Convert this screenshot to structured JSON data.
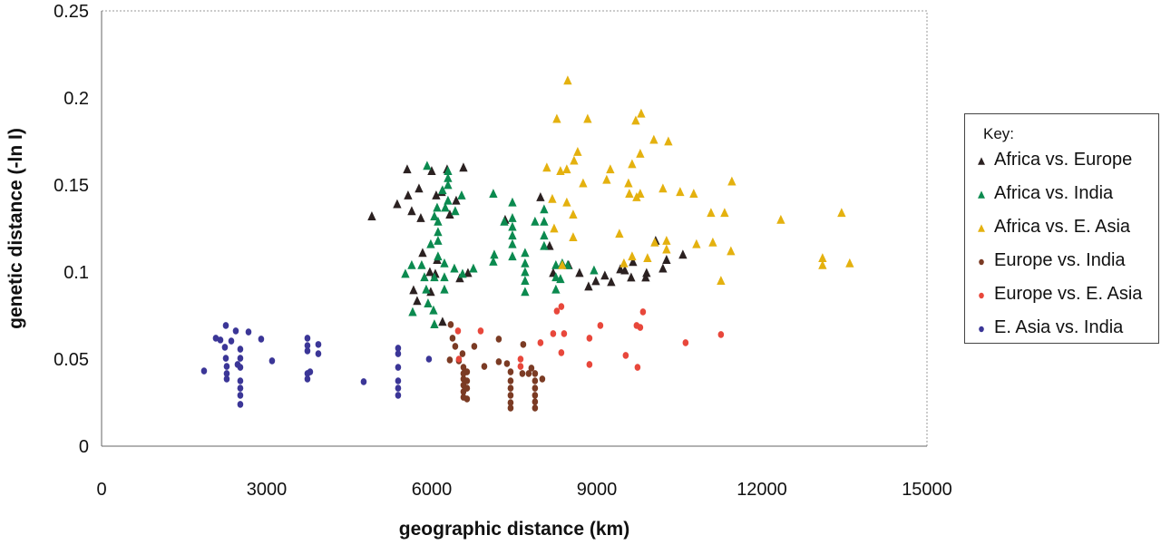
{
  "chart_data": {
    "type": "scatter",
    "title": "",
    "xlabel": "geographic distance (km)",
    "ylabel": "genetic distance (-ln I)",
    "xlim": [
      0,
      15000
    ],
    "ylim": [
      0,
      0.25
    ],
    "xticks": [
      "0",
      "3000",
      "6000",
      "9000",
      "12000",
      "15000"
    ],
    "yticks": [
      "0",
      "0.05",
      "0.1",
      "0.15",
      "0.2",
      "0.25"
    ],
    "xtick_values": [
      0,
      3000,
      6000,
      9000,
      12000,
      15000
    ],
    "ytick_values": [
      0,
      0.05,
      0.1,
      0.15,
      0.2,
      0.25
    ],
    "grid": false,
    "legend_title": "Key:",
    "legend_position": "right",
    "series": [
      {
        "name": "Africa vs. Europe",
        "marker": "triangle",
        "color": "#2b2121",
        "points": [
          [
            4911,
            0.132
          ],
          [
            5372,
            0.139
          ],
          [
            5570,
            0.144
          ],
          [
            5554,
            0.159
          ],
          [
            5636,
            0.135
          ],
          [
            5801,
            0.131
          ],
          [
            5768,
            0.148
          ],
          [
            5999,
            0.158
          ],
          [
            6081,
            0.144
          ],
          [
            6180,
            0.146
          ],
          [
            6279,
            0.159
          ],
          [
            6328,
            0.133
          ],
          [
            6444,
            0.141
          ],
          [
            6576,
            0.16
          ],
          [
            5834,
            0.111
          ],
          [
            6098,
            0.107
          ],
          [
            5966,
            0.1
          ],
          [
            5982,
            0.0886
          ],
          [
            5669,
            0.0896
          ],
          [
            5735,
            0.0834
          ],
          [
            6065,
            0.099
          ],
          [
            6196,
            0.0714
          ],
          [
            6510,
            0.0964
          ],
          [
            6658,
            0.0995
          ],
          [
            7334,
            0.13
          ],
          [
            7976,
            0.143
          ],
          [
            8141,
            0.115
          ],
          [
            8207,
            0.0995
          ],
          [
            8487,
            0.104
          ],
          [
            8685,
            0.0995
          ],
          [
            8850,
            0.0917
          ],
          [
            8982,
            0.0948
          ],
          [
            9146,
            0.098
          ],
          [
            9262,
            0.0943
          ],
          [
            9427,
            0.1016
          ],
          [
            9509,
            0.101
          ],
          [
            9624,
            0.0969
          ],
          [
            9657,
            0.1058
          ],
          [
            9904,
            0.0995
          ],
          [
            10069,
            0.118
          ],
          [
            10201,
            0.102
          ],
          [
            10564,
            0.11
          ],
          [
            9888,
            0.0969
          ],
          [
            10267,
            0.107
          ]
        ]
      },
      {
        "name": "Africa vs. India",
        "marker": "triangle",
        "color": "#0b8a4f",
        "points": [
          [
            5916,
            0.161
          ],
          [
            6295,
            0.158
          ],
          [
            6295,
            0.154
          ],
          [
            6196,
            0.147
          ],
          [
            6295,
            0.15
          ],
          [
            6295,
            0.141
          ],
          [
            6246,
            0.137
          ],
          [
            6543,
            0.144
          ],
          [
            6427,
            0.135
          ],
          [
            7119,
            0.145
          ],
          [
            7466,
            0.14
          ],
          [
            7466,
            0.131
          ],
          [
            7466,
            0.126
          ],
          [
            7466,
            0.121
          ],
          [
            7466,
            0.116
          ],
          [
            7466,
            0.109
          ],
          [
            7318,
            0.129
          ],
          [
            8042,
            0.136
          ],
          [
            8042,
            0.129
          ],
          [
            8042,
            0.121
          ],
          [
            8042,
            0.115
          ],
          [
            7877,
            0.129
          ],
          [
            6114,
            0.129
          ],
          [
            6114,
            0.123
          ],
          [
            6114,
            0.118
          ],
          [
            6114,
            0.109
          ],
          [
            6048,
            0.132
          ],
          [
            6098,
            0.137
          ],
          [
            5636,
            0.104
          ],
          [
            5521,
            0.099
          ],
          [
            5817,
            0.104
          ],
          [
            5867,
            0.097
          ],
          [
            5900,
            0.09
          ],
          [
            5933,
            0.082
          ],
          [
            6032,
            0.078
          ],
          [
            6048,
            0.07
          ],
          [
            5653,
            0.077
          ],
          [
            6230,
            0.105
          ],
          [
            6230,
            0.097
          ],
          [
            6230,
            0.09
          ],
          [
            6560,
            0.099
          ],
          [
            6411,
            0.102
          ],
          [
            6757,
            0.102
          ],
          [
            7136,
            0.11
          ],
          [
            7119,
            0.106
          ],
          [
            7696,
            0.111
          ],
          [
            7696,
            0.105
          ],
          [
            7696,
            0.1
          ],
          [
            7696,
            0.095
          ],
          [
            7696,
            0.0886
          ],
          [
            8256,
            0.104
          ],
          [
            8256,
            0.097
          ],
          [
            8256,
            0.09
          ],
          [
            8339,
            0.096
          ],
          [
            8372,
            0.105
          ],
          [
            8471,
            0.104
          ],
          [
            8949,
            0.101
          ],
          [
            5982,
            0.116
          ],
          [
            6048,
            0.097
          ]
        ]
      },
      {
        "name": "Africa vs. E. Asia",
        "marker": "triangle",
        "color": "#e4b10f",
        "points": [
          [
            8471,
            0.21
          ],
          [
            8273,
            0.188
          ],
          [
            8833,
            0.188
          ],
          [
            9806,
            0.191
          ],
          [
            9707,
            0.187
          ],
          [
            10036,
            0.176
          ],
          [
            10300,
            0.175
          ],
          [
            8652,
            0.169
          ],
          [
            8586,
            0.164
          ],
          [
            9789,
            0.168
          ],
          [
            9641,
            0.162
          ],
          [
            8091,
            0.16
          ],
          [
            8339,
            0.158
          ],
          [
            8454,
            0.159
          ],
          [
            9245,
            0.159
          ],
          [
            8751,
            0.151
          ],
          [
            9179,
            0.153
          ],
          [
            9575,
            0.151
          ],
          [
            9591,
            0.145
          ],
          [
            9723,
            0.143
          ],
          [
            9789,
            0.145
          ],
          [
            10201,
            0.148
          ],
          [
            10514,
            0.146
          ],
          [
            10761,
            0.145
          ],
          [
            11454,
            0.152
          ],
          [
            8191,
            0.142
          ],
          [
            8454,
            0.14
          ],
          [
            8570,
            0.133
          ],
          [
            11075,
            0.134
          ],
          [
            11322,
            0.134
          ],
          [
            12344,
            0.13
          ],
          [
            13448,
            0.134
          ],
          [
            8224,
            0.125
          ],
          [
            8570,
            0.12
          ],
          [
            9410,
            0.122
          ],
          [
            10267,
            0.118
          ],
          [
            10267,
            0.113
          ],
          [
            10053,
            0.117
          ],
          [
            10811,
            0.116
          ],
          [
            11108,
            0.117
          ],
          [
            11437,
            0.112
          ],
          [
            9641,
            0.109
          ],
          [
            9921,
            0.108
          ],
          [
            9493,
            0.105
          ],
          [
            8372,
            0.104
          ],
          [
            11256,
            0.095
          ],
          [
            13102,
            0.108
          ],
          [
            13102,
            0.104
          ],
          [
            13596,
            0.105
          ]
        ]
      },
      {
        "name": "Europe vs. India",
        "marker": "circle",
        "color": "#7b3b24",
        "points": [
          [
            6345,
            0.0698
          ],
          [
            6378,
            0.062
          ],
          [
            6427,
            0.0573
          ],
          [
            6559,
            0.0531
          ],
          [
            6328,
            0.0495
          ],
          [
            6493,
            0.049
          ],
          [
            6576,
            0.0453
          ],
          [
            6576,
            0.0417
          ],
          [
            6576,
            0.0386
          ],
          [
            6576,
            0.035
          ],
          [
            6576,
            0.0313
          ],
          [
            6576,
            0.0281
          ],
          [
            6641,
            0.0427
          ],
          [
            6641,
            0.0375
          ],
          [
            6641,
            0.0333
          ],
          [
            6641,
            0.0271
          ],
          [
            6773,
            0.0573
          ],
          [
            6955,
            0.0458
          ],
          [
            7218,
            0.0615
          ],
          [
            7218,
            0.0485
          ],
          [
            7367,
            0.0474
          ],
          [
            7433,
            0.0427
          ],
          [
            7433,
            0.0375
          ],
          [
            7433,
            0.0333
          ],
          [
            7433,
            0.0292
          ],
          [
            7433,
            0.025
          ],
          [
            7433,
            0.0219
          ],
          [
            7663,
            0.0584
          ],
          [
            7647,
            0.0417
          ],
          [
            7762,
            0.0417
          ],
          [
            7811,
            0.0448
          ],
          [
            7877,
            0.0417
          ],
          [
            7877,
            0.0375
          ],
          [
            7877,
            0.0333
          ],
          [
            7877,
            0.0292
          ],
          [
            7877,
            0.0255
          ],
          [
            7877,
            0.0219
          ],
          [
            8009,
            0.0386
          ]
        ]
      },
      {
        "name": "Europe vs. E. Asia",
        "marker": "circle",
        "color": "#e8473b",
        "points": [
          [
            6477,
            0.0662
          ],
          [
            6493,
            0.05
          ],
          [
            6889,
            0.0662
          ],
          [
            7614,
            0.05
          ],
          [
            7614,
            0.0458
          ],
          [
            7976,
            0.0594
          ],
          [
            8207,
            0.0646
          ],
          [
            8273,
            0.0776
          ],
          [
            8355,
            0.0802
          ],
          [
            8405,
            0.0646
          ],
          [
            8355,
            0.0537
          ],
          [
            8866,
            0.062
          ],
          [
            9064,
            0.0693
          ],
          [
            8866,
            0.0469
          ],
          [
            9723,
            0.0693
          ],
          [
            9789,
            0.0682
          ],
          [
            9839,
            0.0771
          ],
          [
            9740,
            0.0453
          ],
          [
            9525,
            0.0521
          ],
          [
            10613,
            0.0594
          ],
          [
            11256,
            0.0641
          ]
        ]
      },
      {
        "name": "E. Asia vs. India",
        "marker": "circle",
        "color": "#3b3697",
        "points": [
          [
            1862,
            0.0432
          ],
          [
            2076,
            0.062
          ],
          [
            2159,
            0.061
          ],
          [
            2258,
            0.0693
          ],
          [
            2241,
            0.0568
          ],
          [
            2258,
            0.0505
          ],
          [
            2274,
            0.0458
          ],
          [
            2274,
            0.0417
          ],
          [
            2274,
            0.0386
          ],
          [
            2357,
            0.0604
          ],
          [
            2521,
            0.024
          ],
          [
            2521,
            0.0375
          ],
          [
            2521,
            0.0453
          ],
          [
            2521,
            0.0505
          ],
          [
            2521,
            0.0557
          ],
          [
            2521,
            0.0333
          ],
          [
            2521,
            0.0292
          ],
          [
            2472,
            0.0469
          ],
          [
            2439,
            0.0662
          ],
          [
            2670,
            0.0656
          ],
          [
            2900,
            0.0615
          ],
          [
            3098,
            0.049
          ],
          [
            3741,
            0.0547
          ],
          [
            3741,
            0.062
          ],
          [
            3741,
            0.0578
          ],
          [
            3741,
            0.0417
          ],
          [
            3741,
            0.0386
          ],
          [
            3790,
            0.0427
          ],
          [
            3939,
            0.0584
          ],
          [
            3939,
            0.0531
          ],
          [
            4763,
            0.037
          ],
          [
            5389,
            0.0563
          ],
          [
            5389,
            0.0531
          ],
          [
            5389,
            0.0453
          ],
          [
            5389,
            0.0375
          ],
          [
            5389,
            0.0333
          ],
          [
            5389,
            0.0292
          ],
          [
            5949,
            0.05
          ]
        ]
      }
    ]
  }
}
